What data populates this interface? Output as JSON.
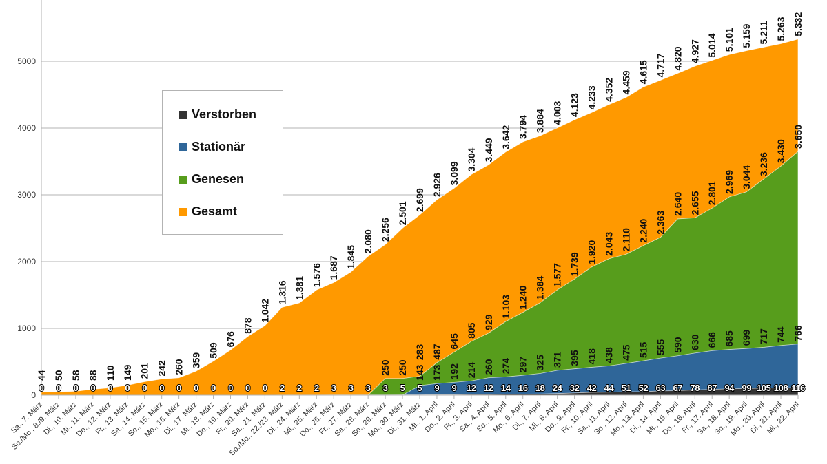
{
  "chart_data": {
    "type": "area",
    "stacked": false,
    "grid": true,
    "legend_position": "left-inside",
    "ylim": [
      0,
      5500
    ],
    "yticks": [
      0,
      1000,
      2000,
      3000,
      4000,
      5000
    ],
    "categories": [
      "Sa., 7. März",
      "So./Mo., 8./9. März",
      "Di., 10. März",
      "Mi., 11. März",
      "Do., 12. März",
      "Fr., 13. März",
      "Sa., 14. März",
      "So., 15. März",
      "Mo., 16. März",
      "Di., 17. März",
      "Mi., 18. März",
      "Do., 19. März",
      "Fr., 20. März",
      "Sa., 21. März",
      "So./Mo., 22./23. März",
      "Di., 24. März",
      "Mi., 25. März",
      "Do., 26. März",
      "Fr., 27. März",
      "Sa., 28. März",
      "So., 29. März",
      "Mo., 30. März",
      "Di., 31. März",
      "Mi., 1. April",
      "Do., 2. April",
      "Fr., 3. April",
      "Sa., 4. April",
      "So., 5. April",
      "Mo., 6. April",
      "Di., 7. April",
      "Mi., 8. April",
      "Do., 9. April",
      "Fr., 10. April",
      "Sa., 11. April",
      "So., 12. April",
      "Mo., 13. April",
      "Di., 14. April",
      "Mi., 15. April",
      "Do., 16. April",
      "Fr., 17. April",
      "Sa., 18. April",
      "So., 19. April",
      "Mo., 20. April",
      "Di., 21. April",
      "Mi., 22. April"
    ],
    "series": [
      {
        "name": "Gesamt",
        "color": "#ff9900",
        "values": [
          44,
          50,
          58,
          88,
          110,
          149,
          201,
          242,
          260,
          359,
          509,
          676,
          878,
          1042,
          1316,
          1381,
          1576,
          1687,
          1845,
          2080,
          2256,
          2501,
          2699,
          2926,
          3099,
          3304,
          3449,
          3642,
          3794,
          3884,
          4003,
          4123,
          4233,
          4352,
          4459,
          4615,
          4717,
          4820,
          4927,
          5014,
          5101,
          5159,
          5211,
          5263,
          5332
        ]
      },
      {
        "name": "Genesen",
        "color": "#579d1c",
        "values": [
          null,
          null,
          null,
          null,
          null,
          null,
          null,
          null,
          null,
          null,
          null,
          null,
          null,
          null,
          null,
          null,
          null,
          null,
          null,
          0,
          250,
          250,
          283,
          487,
          645,
          805,
          929,
          1103,
          1240,
          1384,
          1577,
          1739,
          1920,
          2043,
          2110,
          2240,
          2363,
          2640,
          2655,
          2801,
          2969,
          3044,
          3236,
          3430,
          3650
        ]
      },
      {
        "name": "Stationär",
        "color": "#2f6699",
        "values": [
          null,
          null,
          null,
          null,
          null,
          null,
          null,
          null,
          null,
          null,
          null,
          null,
          null,
          null,
          null,
          null,
          null,
          null,
          null,
          null,
          null,
          0,
          143,
          173,
          192,
          214,
          260,
          274,
          297,
          325,
          371,
          395,
          418,
          438,
          475,
          515,
          555,
          590,
          630,
          666,
          685,
          699,
          717,
          744,
          766
        ]
      },
      {
        "name": "Verstorben",
        "color": "#333333",
        "values": [
          0,
          0,
          0,
          0,
          0,
          0,
          0,
          0,
          0,
          0,
          0,
          0,
          0,
          0,
          2,
          2,
          2,
          3,
          3,
          3,
          3,
          5,
          5,
          9,
          9,
          12,
          12,
          14,
          16,
          18,
          24,
          32,
          42,
          44,
          51,
          52,
          63,
          67,
          78,
          87,
          94,
          99,
          105,
          108,
          116
        ]
      }
    ]
  },
  "legend": {
    "items": [
      {
        "label": "Verstorben",
        "color": "#333333"
      },
      {
        "label": "Stationär",
        "color": "#2f6699"
      },
      {
        "label": "Genesen",
        "color": "#579d1c"
      },
      {
        "label": "Gesamt",
        "color": "#ff9900"
      }
    ]
  }
}
